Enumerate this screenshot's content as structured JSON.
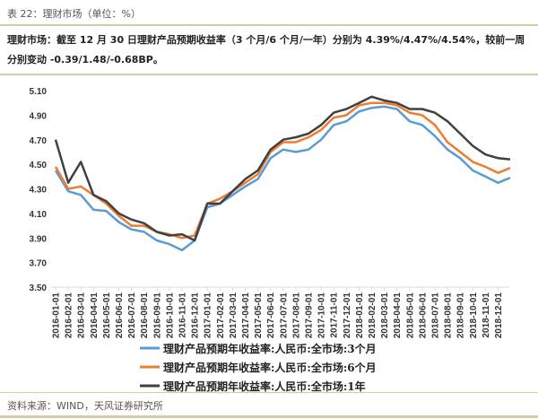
{
  "header": {
    "caption": "表 22：理财市场（单位：%）",
    "summary": "理财市场：截至 12 月 30 日理财产品预期收益率（3 个月/6 个月/一年）分别为 4.39%/4.47%/4.54%，较前一周分别变动 -0.39/1.48/-0.68BP。"
  },
  "footer": {
    "source": "资料来源：WIND，天风证券研究所"
  },
  "chart_data": {
    "type": "line",
    "title": "",
    "xlabel": "",
    "ylabel": "",
    "ylim": [
      3.5,
      5.1
    ],
    "yticks": [
      "5.10",
      "4.90",
      "4.70",
      "4.50",
      "4.30",
      "4.10",
      "3.90",
      "3.70",
      "3.50"
    ],
    "grid": false,
    "legend_position": "bottom",
    "categories": [
      "2016-01-01",
      "2016-02-01",
      "2016-03-01",
      "2016-04-01",
      "2016-05-01",
      "2016-06-01",
      "2016-07-01",
      "2016-08-01",
      "2016-09-01",
      "2016-10-01",
      "2016-11-01",
      "2016-12-01",
      "2017-01-01",
      "2017-02-01",
      "2017-03-01",
      "2017-04-01",
      "2017-05-01",
      "2017-06-01",
      "2017-07-01",
      "2017-08-01",
      "2017-09-01",
      "2017-10-01",
      "2017-11-01",
      "2017-12-01",
      "2018-01-01",
      "2018-02-01",
      "2018-03-01",
      "2018-04-01",
      "2018-05-01",
      "2018-06-01",
      "2018-07-01",
      "2018-08-01",
      "2018-09-01",
      "2018-10-01",
      "2018-11-01",
      "2018-12-01"
    ],
    "x": [
      0,
      1,
      2,
      3,
      4,
      5,
      6,
      7,
      8,
      9,
      10,
      11,
      12,
      13,
      14,
      15,
      16,
      17,
      18,
      19,
      20,
      21,
      22,
      23,
      24,
      25,
      26,
      27,
      28,
      29,
      30,
      31,
      32,
      33,
      34,
      35,
      35.95
    ],
    "series": [
      {
        "name": "理财产品预期年收益率:人民币:全市场:3个月",
        "color": "#5b9bd5",
        "values": [
          4.45,
          4.28,
          4.25,
          4.13,
          4.12,
          4.03,
          3.97,
          3.95,
          3.88,
          3.85,
          3.8,
          3.88,
          4.15,
          4.18,
          4.25,
          4.32,
          4.38,
          4.55,
          4.62,
          4.6,
          4.62,
          4.7,
          4.82,
          4.85,
          4.93,
          4.96,
          4.97,
          4.95,
          4.85,
          4.82,
          4.73,
          4.62,
          4.55,
          4.45,
          4.4,
          4.35,
          4.39
        ]
      },
      {
        "name": "理财产品预期年收益率:人民币:全市场:6个月",
        "color": "#ed7d31",
        "values": [
          4.48,
          4.3,
          4.32,
          4.25,
          4.18,
          4.08,
          4.0,
          4.0,
          3.95,
          3.93,
          3.9,
          3.92,
          4.18,
          4.22,
          4.28,
          4.35,
          4.42,
          4.6,
          4.68,
          4.68,
          4.72,
          4.78,
          4.88,
          4.9,
          4.98,
          5.0,
          5.0,
          4.98,
          4.92,
          4.9,
          4.82,
          4.68,
          4.6,
          4.52,
          4.48,
          4.43,
          4.47
        ]
      },
      {
        "name": "理财产品预期年收益率:人民币:全市场:1年",
        "color": "#404040",
        "values": [
          4.7,
          4.35,
          4.52,
          4.25,
          4.2,
          4.1,
          4.05,
          4.02,
          3.95,
          3.92,
          3.93,
          3.88,
          4.18,
          4.18,
          4.28,
          4.38,
          4.45,
          4.62,
          4.7,
          4.72,
          4.75,
          4.82,
          4.92,
          4.95,
          5.0,
          5.05,
          5.02,
          5.0,
          4.95,
          4.95,
          4.92,
          4.85,
          4.75,
          4.65,
          4.58,
          4.55,
          4.54
        ]
      }
    ]
  }
}
